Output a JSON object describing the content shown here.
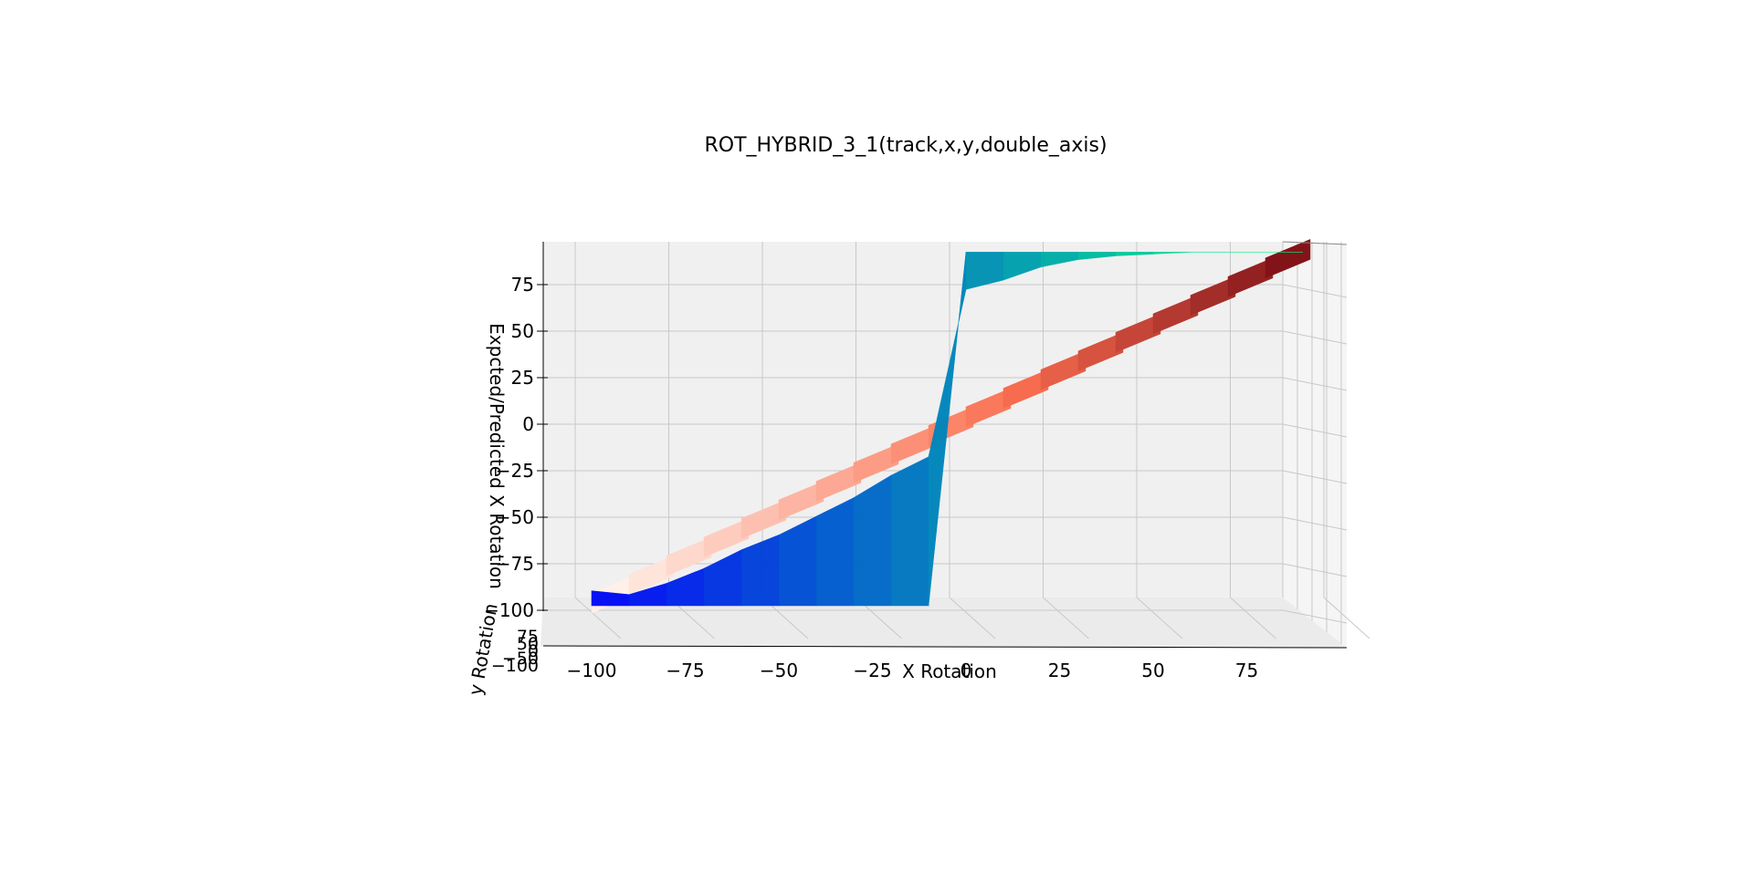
{
  "chart_data": {
    "type": "surface3d",
    "title": "ROT_HYBRID_3_1(track,x,y,double_axis)",
    "xlabel": "X Rotation",
    "ylabel": "y Rotation",
    "zlabel": "Expcted/Predicted X Rotation",
    "x_ticks": [
      "−100",
      "−75",
      "−50",
      "−25",
      "0",
      "25",
      "50",
      "75"
    ],
    "y_ticks": [
      "−100",
      "−50",
      "0",
      "50",
      "75"
    ],
    "z_ticks": [
      "−100",
      "−75",
      "−50",
      "−25",
      "0",
      "25",
      "50",
      "75"
    ],
    "xlim": [
      -100,
      100
    ],
    "zlim": [
      -100,
      90
    ],
    "grid": true,
    "series": [
      {
        "colormap": "Reds",
        "x": [
          -100,
          -90,
          -80,
          -70,
          -60,
          -50,
          -40,
          -30,
          -20,
          -10,
          0,
          10,
          20,
          30,
          40,
          50,
          60,
          70,
          80,
          90
        ],
        "z": [
          -100,
          -90,
          -80,
          -70,
          -60,
          -50,
          -40,
          -30,
          -20,
          -10,
          0,
          10,
          20,
          30,
          40,
          50,
          60,
          70,
          80,
          90
        ]
      },
      {
        "colormap": "winter",
        "x": [
          -100,
          -90,
          -80,
          -70,
          -60,
          -50,
          -40,
          -30,
          -20,
          -10,
          0,
          10,
          20,
          30,
          40,
          50,
          60,
          70,
          80,
          90
        ],
        "z_low": [
          -100,
          -100,
          -100,
          -100,
          -100,
          -100,
          -100,
          -100,
          -100,
          -100,
          90,
          90,
          90,
          90,
          90,
          90,
          90,
          90,
          90,
          90
        ],
        "z_high": [
          -92,
          -94,
          -88,
          -80,
          -70,
          -62,
          -52,
          -42,
          -30,
          -20,
          70,
          75,
          82,
          86,
          88,
          89,
          90,
          90,
          90,
          90
        ]
      }
    ]
  }
}
